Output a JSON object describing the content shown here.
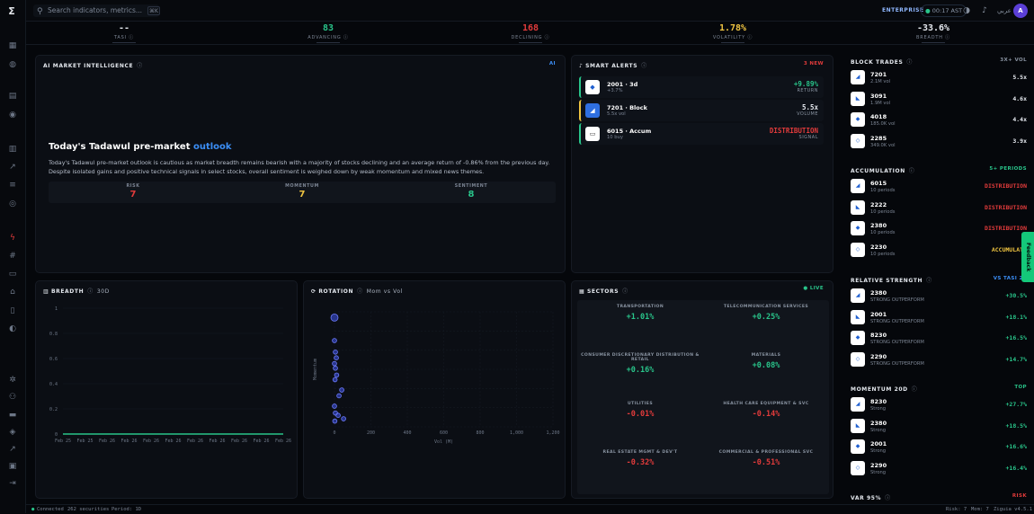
{
  "topbar": {
    "search_placeholder": "Search indicators, metrics...",
    "shortcut": "⌘K",
    "plan": "ENTERPRISE",
    "clock": "00:17 AST",
    "language": "عربي",
    "avatar_initial": "A"
  },
  "stats": [
    {
      "value": "--",
      "label": "TASI",
      "color": "#e4e8ee"
    },
    {
      "value": "83",
      "label": "ADVANCING",
      "color": "#29c48a"
    },
    {
      "value": "168",
      "label": "DECLINING",
      "color": "#e23b3b"
    },
    {
      "value": "1.78%",
      "label": "VOLATILITY",
      "color": "#f0c541"
    },
    {
      "value": "-33.6%",
      "label": "BREADTH",
      "color": "#e4e8ee"
    }
  ],
  "ai": {
    "header": "AI MARKET INTELLIGENCE",
    "tag": "AI",
    "title_prefix": "Today's Tadawul pre-market",
    "title_highlight": "outlook",
    "body": "Today's Tadawul pre-market outlook is cautious as market breadth remains bearish with a majority of stocks declining and an average return of -0.86% from the previous day. Despite isolated gains and positive technical signals in select stocks, overall sentiment is weighed down by weak momentum and mixed news themes.",
    "metrics": [
      {
        "label": "RISK",
        "value": "7",
        "color": "#e23b3b"
      },
      {
        "label": "MOMENTUM",
        "value": "7",
        "color": "#f0c541"
      },
      {
        "label": "SENTIMENT",
        "value": "8",
        "color": "#29c48a"
      }
    ]
  },
  "alerts": {
    "header": "SMART ALERTS",
    "badge": "3 NEW",
    "items": [
      {
        "title": "2001 · 3d",
        "sub": "+3.7%",
        "value": "+9.89%",
        "label": "RETURN",
        "color": "#29c48a",
        "border": "#29c48a"
      },
      {
        "title": "7201 · Block",
        "sub": "5.5x vol",
        "value": "5.5x",
        "label": "VOLUME",
        "color": "#e4e8ee",
        "border": "#f0c541"
      },
      {
        "title": "6015 · Accum",
        "sub": "10 buy",
        "value": "DISTRIBUTION",
        "label": "SIGNAL",
        "color": "#e23b3b",
        "border": "#29c48a"
      }
    ]
  },
  "breadth": {
    "header": "BREADTH",
    "period": "30D",
    "y_ticks": [
      "1",
      "0.8",
      "0.6",
      "0.4",
      "0.2",
      "0"
    ],
    "x_ticks": [
      "Feb 25",
      "Feb 25",
      "Feb 26",
      "Feb 26",
      "Feb 26",
      "Feb 26",
      "Feb 26",
      "Feb 26",
      "Feb 26",
      "Feb 26",
      "Feb 26"
    ]
  },
  "rotation": {
    "header": "ROTATION",
    "subtitle": "Mom vs Vol",
    "y_label": "Momentum",
    "x_label": "Vol (M)",
    "x_ticks": [
      "0",
      "200",
      "400",
      "600",
      "800",
      "1,000",
      "1,200"
    ]
  },
  "sectors": {
    "header": "SECTORS",
    "live": "LIVE",
    "items": [
      {
        "label": "TRANSPORTATION",
        "value": "+1.01%",
        "color": "#29c48a"
      },
      {
        "label": "TELECOMMUNICATION SERVICES",
        "value": "+0.25%",
        "color": "#29c48a"
      },
      {
        "label": "CONSUMER DISCRETIONARY DISTRIBUTION & RETAIL",
        "value": "+0.16%",
        "color": "#29c48a"
      },
      {
        "label": "MATERIALS",
        "value": "+0.08%",
        "color": "#29c48a"
      },
      {
        "label": "UTILITIES",
        "value": "-0.01%",
        "color": "#e23b3b"
      },
      {
        "label": "HEALTH CARE EQUIPMENT & SVC",
        "value": "-0.14%",
        "color": "#e23b3b"
      },
      {
        "label": "REAL ESTATE MGMT & DEV'T",
        "value": "-0.32%",
        "color": "#e23b3b"
      },
      {
        "label": "COMMERCIAL & PROFESSIONAL SVC",
        "value": "-0.51%",
        "color": "#e23b3b"
      }
    ]
  },
  "right": {
    "block": {
      "header": "BLOCK TRADES",
      "tag": "3X+ VOL",
      "rows": [
        {
          "ticker": "7201",
          "sub": "2.1M vol",
          "value": "5.5x"
        },
        {
          "ticker": "3091",
          "sub": "1.9M vol",
          "value": "4.6x"
        },
        {
          "ticker": "4018",
          "sub": "185.0K vol",
          "value": "4.4x"
        },
        {
          "ticker": "2285",
          "sub": "349.0K vol",
          "value": "3.9x"
        }
      ]
    },
    "accum": {
      "header": "ACCUMULATION",
      "tag": "5+ PERIODS",
      "rows": [
        {
          "ticker": "6015",
          "sub": "10 periods",
          "value": "DISTRIBUTION"
        },
        {
          "ticker": "2222",
          "sub": "10 periods",
          "value": "DISTRIBUTION"
        },
        {
          "ticker": "2380",
          "sub": "10 periods",
          "value": "DISTRIBUTION"
        },
        {
          "ticker": "2230",
          "sub": "10 periods",
          "value": "ACCUMULATI"
        }
      ]
    },
    "rs": {
      "header": "RELATIVE STRENGTH",
      "tag": "VS TASI 20",
      "rows": [
        {
          "ticker": "2380",
          "sub": "STRONG OUTPERFORM",
          "value": "+30.5%"
        },
        {
          "ticker": "2001",
          "sub": "STRONG OUTPERFORM",
          "value": "+18.1%"
        },
        {
          "ticker": "8230",
          "sub": "STRONG OUTPERFORM",
          "value": "+16.5%"
        },
        {
          "ticker": "2290",
          "sub": "STRONG OUTPERFORM",
          "value": "+14.7%"
        }
      ]
    },
    "mom": {
      "header": "MOMENTUM 20D",
      "tag": "TOP",
      "rows": [
        {
          "ticker": "8230",
          "sub": "Strong",
          "value": "+27.7%"
        },
        {
          "ticker": "2380",
          "sub": "Strong",
          "value": "+18.5%"
        },
        {
          "ticker": "2001",
          "sub": "Strong",
          "value": "+16.6%"
        },
        {
          "ticker": "2290",
          "sub": "Strong",
          "value": "+16.4%"
        }
      ]
    },
    "var": {
      "header": "VAR 95%",
      "tag": "RISK"
    }
  },
  "feedback": "Feedback",
  "footer": {
    "status": "Connected",
    "securities": "262 securities",
    "period": "Period: 1D",
    "risk": "Risk: 7",
    "mom": "Mom: 7",
    "version": "Ziguia v4.5.1"
  },
  "chart_data": [
    {
      "type": "line",
      "title": "",
      "ylim": [
        0,
        1
      ],
      "x": [
        "Feb 25",
        "Feb 25",
        "Feb 26",
        "Feb 26",
        "Feb 26",
        "Feb 26",
        "Feb 26",
        "Feb 26",
        "Feb 26",
        "Feb 26",
        "Feb 26"
      ],
      "series": [
        {
          "name": "",
          "values": [
            0,
            0,
            0,
            0,
            0,
            0,
            0,
            0,
            0,
            0,
            0
          ]
        }
      ]
    },
    {
      "type": "scatter",
      "title": "",
      "xlabel": "Vol (M)",
      "ylabel": "Momentum",
      "xlim": [
        0,
        1200
      ],
      "points": [
        {
          "x": 0,
          "y": 8
        },
        {
          "x": 0,
          "y": 6
        },
        {
          "x": 5,
          "y": 5
        },
        {
          "x": 10,
          "y": 4.5
        },
        {
          "x": 0,
          "y": 4
        },
        {
          "x": 5,
          "y": 3.6
        },
        {
          "x": 12,
          "y": 3
        },
        {
          "x": 3,
          "y": 2.6
        },
        {
          "x": 40,
          "y": 1.7
        },
        {
          "x": 25,
          "y": 1.2
        },
        {
          "x": 0,
          "y": 0.3
        },
        {
          "x": 5,
          "y": -0.3
        },
        {
          "x": 20,
          "y": -0.5
        },
        {
          "x": 2,
          "y": -1
        },
        {
          "x": 50,
          "y": -0.8
        }
      ]
    }
  ]
}
